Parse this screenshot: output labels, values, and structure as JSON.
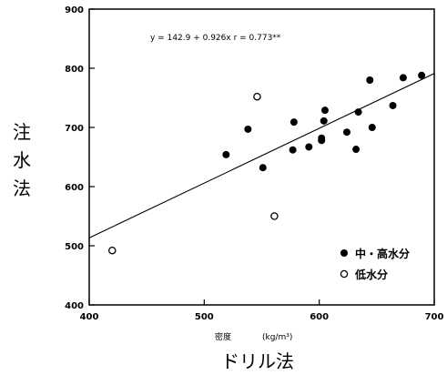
{
  "chart_data": {
    "type": "scatter",
    "ylabel": "注水法",
    "xlabel": "ドリル法",
    "x_unit_label": "密度",
    "x_unit": "(kg/m³)",
    "xlim": [
      400,
      700
    ],
    "ylim": [
      400,
      900
    ],
    "x_ticks": [
      "400",
      "500",
      "600",
      "700"
    ],
    "y_ticks": [
      "400",
      "500",
      "600",
      "700",
      "800",
      "900"
    ],
    "annotation": "y = 142.9  + 0.926x     r = 0.773**",
    "regression": {
      "intercept": 142.9,
      "slope": 0.926,
      "x_range": [
        400,
        700
      ]
    },
    "legend_position": "bottom-right",
    "grid": false,
    "series": [
      {
        "name": "中・高水分",
        "marker": "filled-circle",
        "points": [
          [
            519,
            654
          ],
          [
            538,
            697
          ],
          [
            551,
            632
          ],
          [
            577,
            662
          ],
          [
            578,
            709
          ],
          [
            591,
            667
          ],
          [
            602,
            682
          ],
          [
            602,
            678
          ],
          [
            604,
            711
          ],
          [
            605,
            729
          ],
          [
            624,
            692
          ],
          [
            632,
            663
          ],
          [
            634,
            726
          ],
          [
            644,
            780
          ],
          [
            646,
            700
          ],
          [
            664,
            737
          ],
          [
            673,
            784
          ],
          [
            689,
            788
          ]
        ]
      },
      {
        "name": "低水分",
        "marker": "open-circle",
        "points": [
          [
            420,
            492
          ],
          [
            546,
            752
          ],
          [
            561,
            550
          ]
        ]
      }
    ]
  }
}
